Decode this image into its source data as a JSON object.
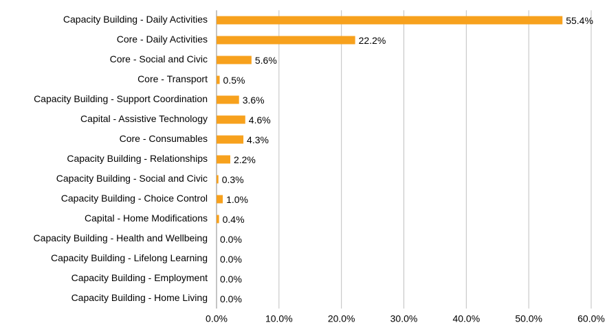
{
  "chart_data": {
    "type": "bar",
    "orientation": "horizontal",
    "categories": [
      "Capacity Building - Daily Activities",
      "Core - Daily Activities",
      "Core - Social and Civic",
      "Core - Transport",
      "Capacity Building - Support Coordination",
      "Capital - Assistive Technology",
      "Core - Consumables",
      "Capacity Building - Relationships",
      "Capacity Building - Social and Civic",
      "Capacity Building - Choice Control",
      "Capital - Home Modifications",
      "Capacity Building - Health and Wellbeing",
      "Capacity Building - Lifelong Learning",
      "Capacity Building - Employment",
      "Capacity Building - Home Living"
    ],
    "values": [
      55.4,
      22.2,
      5.6,
      0.5,
      3.6,
      4.6,
      4.3,
      2.2,
      0.3,
      1.0,
      0.4,
      0.0,
      0.0,
      0.0,
      0.0
    ],
    "value_labels": [
      "55.4%",
      "22.2%",
      "5.6%",
      "0.5%",
      "3.6%",
      "4.6%",
      "4.3%",
      "2.2%",
      "0.3%",
      "1.0%",
      "0.4%",
      "0.0%",
      "0.0%",
      "0.0%",
      "0.0%"
    ],
    "color": "#f7a11d",
    "xlim": [
      0,
      60
    ],
    "xticks": [
      {
        "value": 0,
        "label": "0.0%"
      },
      {
        "value": 10,
        "label": "10.0%"
      },
      {
        "value": 20,
        "label": "20.0%"
      },
      {
        "value": 30,
        "label": "30.0%"
      },
      {
        "value": 40,
        "label": "40.0%"
      },
      {
        "value": 50,
        "label": "50.0%"
      },
      {
        "value": 60,
        "label": "60.0%"
      }
    ],
    "grid": true
  }
}
